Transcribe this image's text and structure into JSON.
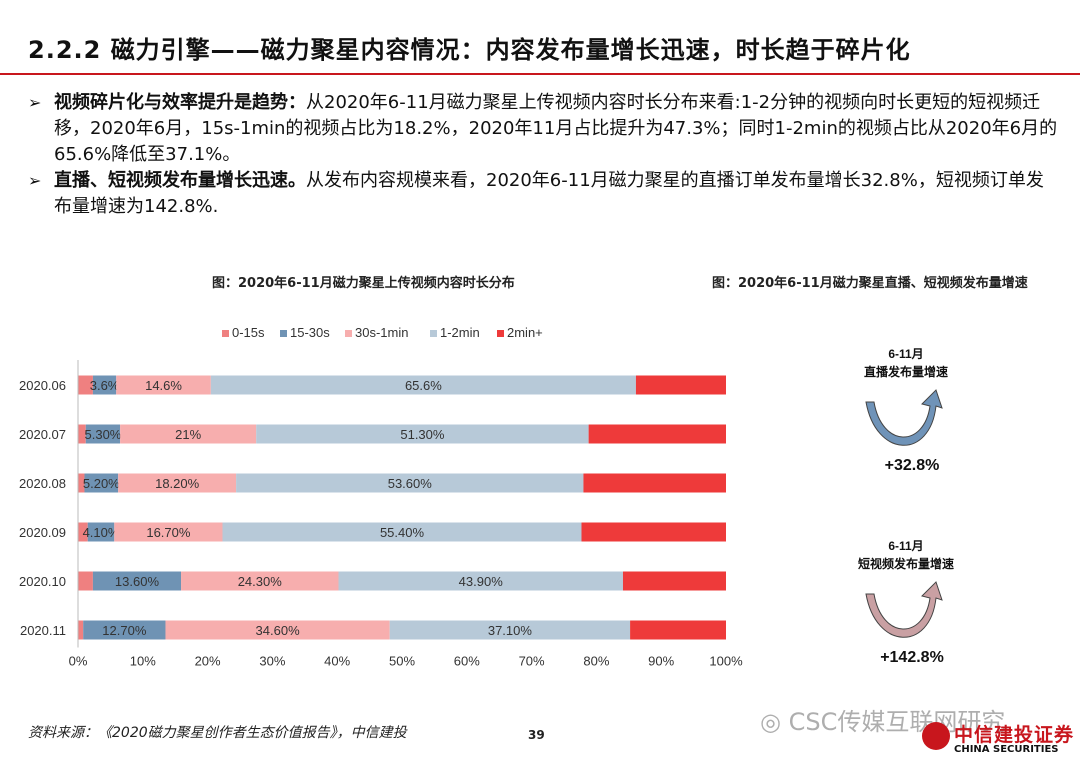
{
  "header": {
    "title": "2.2.2 磁力引擎——磁力聚星内容情况：内容发布量增长迅速，时长趋于碎片化"
  },
  "bullets": [
    {
      "bold": "视频碎片化与效率提升是趋势：",
      "text": "从2020年6-11月磁力聚星上传视频内容时长分布来看:1-2分钟的视频向时长更短的短视频迁移，2020年6月，15s-1min的视频占比为18.2%，2020年11月占比提升为47.3%；同时1-2min的视频占比从2020年6月的65.6%降低至37.1%。"
    },
    {
      "bold": "直播、短视频发布量增长迅速。",
      "text": "从发布内容规模来看，2020年6-11月磁力聚星的直播订单发布量增长32.8%，短视频订单发布量增速为142.8%."
    }
  ],
  "figure_left": {
    "title": "图：2020年6-11月磁力聚星上传视频内容时长分布"
  },
  "figure_right": {
    "title": "图：2020年6-11月磁力聚星直播、短视频发布量增速",
    "items": [
      {
        "label_line1": "6-11月",
        "label_line2": "直播发布量增速",
        "value": "+32.8%",
        "color": "#6f93b8",
        "value_fraction": 0.328
      },
      {
        "label_line1": "6-11月",
        "label_line2": "短视频发布量增速",
        "value": "+142.8%",
        "color": "#c9a0a3",
        "value_fraction": 1.428
      }
    ]
  },
  "chart_data": {
    "type": "bar",
    "orientation": "horizontal",
    "stacked": true,
    "categories": [
      "2020.06",
      "2020.07",
      "2020.08",
      "2020.09",
      "2020.10",
      "2020.11"
    ],
    "series": [
      {
        "name": "0-15s",
        "color": "#ef8080",
        "values": [
          2.3,
          1.2,
          1.0,
          1.5,
          2.3,
          0.8
        ],
        "labels": [
          "",
          "",
          "",
          "",
          "",
          ""
        ]
      },
      {
        "name": "15-30s",
        "color": "#6f93b4",
        "values": [
          3.6,
          5.3,
          5.2,
          4.1,
          13.6,
          12.7
        ],
        "labels": [
          "3.6%",
          "5.30%",
          "5.20%",
          "4.10%",
          "13.60%",
          "12.70%"
        ]
      },
      {
        "name": "30s-1min",
        "color": "#f7aeae",
        "values": [
          14.6,
          21.0,
          18.2,
          16.7,
          24.3,
          34.6
        ],
        "labels": [
          "14.6%",
          "21%",
          "18.20%",
          "16.70%",
          "24.30%",
          "34.60%"
        ]
      },
      {
        "name": "1-2min",
        "color": "#b7c9d8",
        "values": [
          65.6,
          51.3,
          53.6,
          55.4,
          43.9,
          37.1
        ],
        "labels": [
          "65.6%",
          "51.30%",
          "53.60%",
          "55.40%",
          "43.90%",
          "37.10%"
        ]
      },
      {
        "name": "2min+",
        "color": "#ee3a3a",
        "values": [
          13.9,
          21.2,
          22.0,
          22.3,
          15.9,
          14.8
        ],
        "labels": [
          "",
          "",
          "",
          "",
          "",
          ""
        ]
      }
    ],
    "xlim": [
      0,
      100
    ],
    "xticks": [
      "0%",
      "10%",
      "20%",
      "30%",
      "40%",
      "50%",
      "60%",
      "70%",
      "80%",
      "90%",
      "100%"
    ],
    "legend_position": "top",
    "grid": false
  },
  "footer": {
    "source": "资料来源：《2020磁力聚星创作者生态价值报告》，中信建投",
    "page_number": "39",
    "watermark": "CSC传媒互联网研究",
    "logo_cn": "中信建投证券",
    "logo_en": "CHINA SECURITIES"
  }
}
